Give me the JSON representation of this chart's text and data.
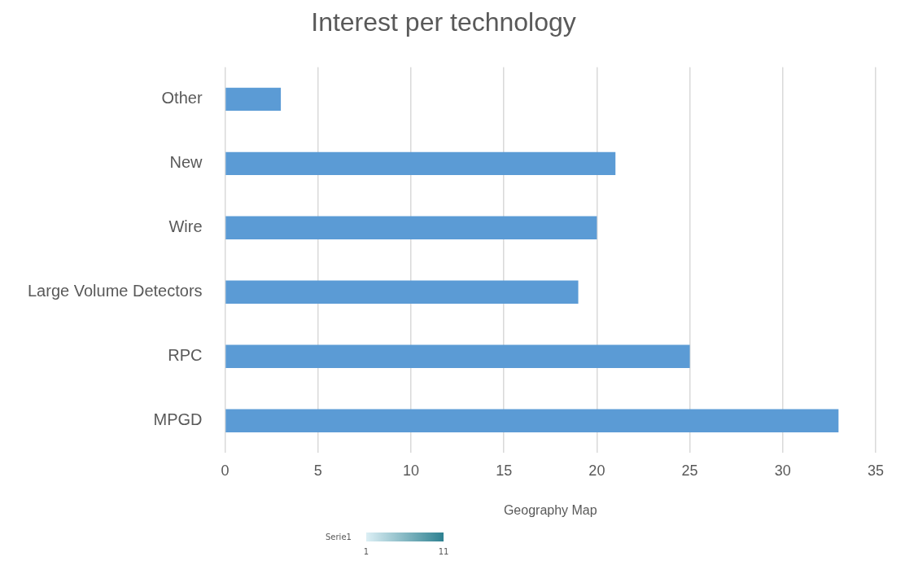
{
  "chart_data": {
    "type": "bar",
    "title": "Interest per technology",
    "xlabel": "Geography Map",
    "orientation": "horizontal",
    "categories": [
      "Other",
      "New",
      "Wire",
      "Large Volume Detectors",
      "RPC",
      "MPGD"
    ],
    "values": [
      3,
      21,
      20,
      19,
      25,
      33
    ],
    "color": "#5b9bd5",
    "xlim": [
      0,
      35
    ],
    "xticks": [
      0,
      5,
      10,
      15,
      20,
      25,
      30,
      35
    ],
    "grid": "x",
    "clabel": "Serie1",
    "clim": [
      1,
      11
    ],
    "cticks": [
      1,
      11
    ]
  }
}
